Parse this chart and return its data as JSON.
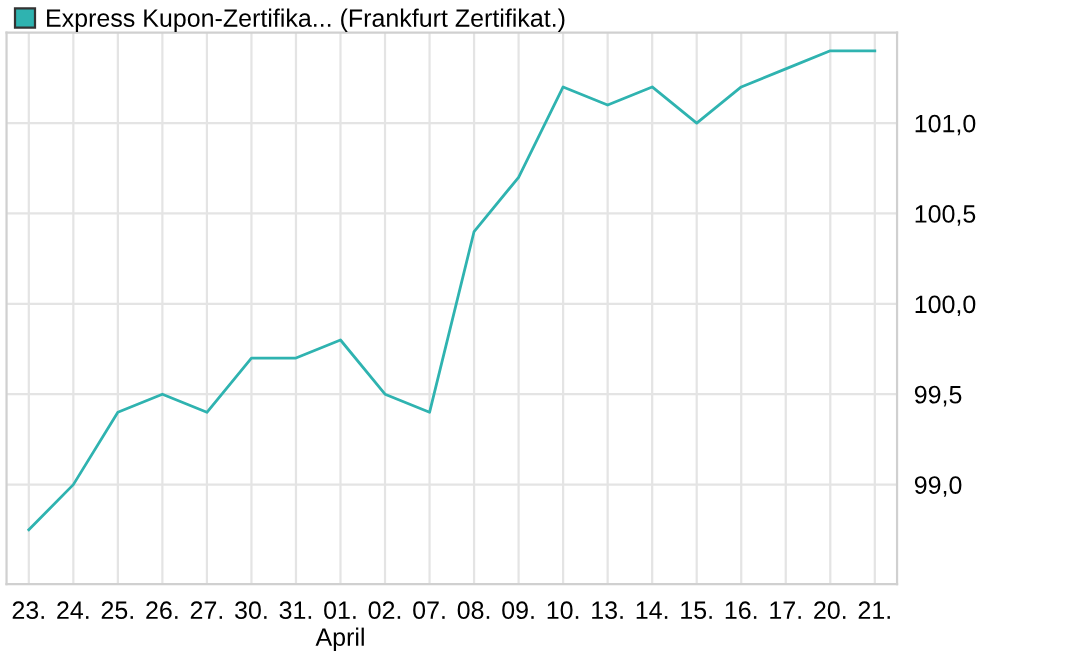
{
  "chart_data": {
    "type": "line",
    "categories": [
      "23.",
      "24.",
      "25.",
      "26.",
      "27.",
      "30.",
      "31.",
      "01.\nApril",
      "02.",
      "07.",
      "08.",
      "09.",
      "10.",
      "13.",
      "14.",
      "15.",
      "16.",
      "17.",
      "20.",
      "21."
    ],
    "series": [
      {
        "name": "Express Kupon-Zertifika... (Frankfurt Zertifikat.)",
        "color": "#2fb3b0",
        "values": [
          98.75,
          99.0,
          99.4,
          99.5,
          99.4,
          99.7,
          99.7,
          99.8,
          99.5,
          99.4,
          100.4,
          100.7,
          101.2,
          101.1,
          101.2,
          101.0,
          101.2,
          101.3,
          101.4,
          101.4
        ]
      }
    ],
    "ylim": [
      98.45,
      101.5
    ],
    "yticks": [
      {
        "value": 99.0,
        "label": "99,0"
      },
      {
        "value": 99.5,
        "label": "99,5"
      },
      {
        "value": 100.0,
        "label": "100,0"
      },
      {
        "value": 100.5,
        "label": "100,5"
      },
      {
        "value": 101.0,
        "label": "101,0"
      }
    ],
    "grid": true,
    "legend": "top left",
    "marker": "none",
    "line_style": "solid"
  }
}
